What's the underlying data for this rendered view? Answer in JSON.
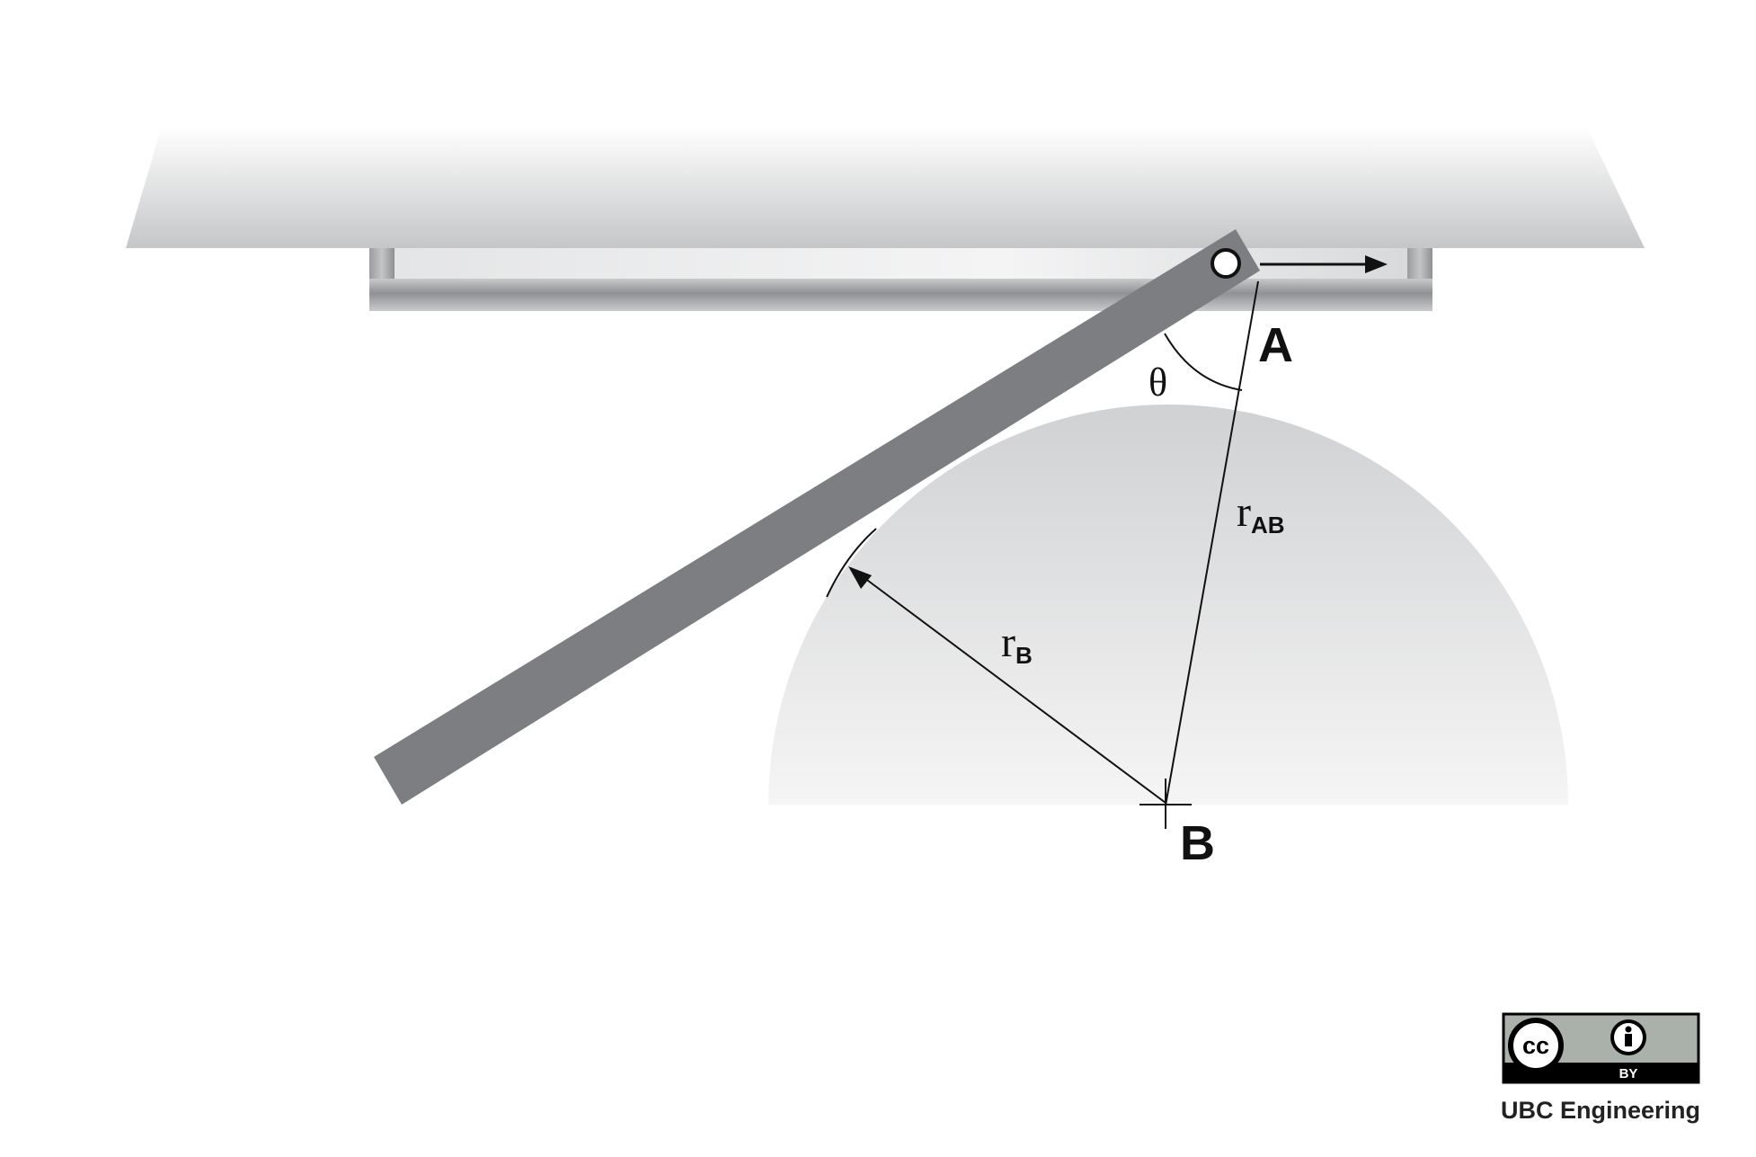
{
  "labels": {
    "point_a": "A",
    "point_b": "B",
    "angle": "θ",
    "r_ab_main": "r",
    "r_ab_sub": "AB",
    "r_b_main": "r",
    "r_b_sub": "B"
  },
  "license": {
    "cc_text": "cc",
    "by_text": "BY",
    "credit": "UBC Engineering",
    "icons": [
      "cc-icon",
      "attribution-person-icon"
    ]
  },
  "colors": {
    "ceiling": "#c8c9cb",
    "rail": "#a5a7aa",
    "rod": "#8a8c8f",
    "semicircle": "#e2e3e4",
    "badge_bg": "#aab0aa",
    "badge_band": "#000000"
  }
}
